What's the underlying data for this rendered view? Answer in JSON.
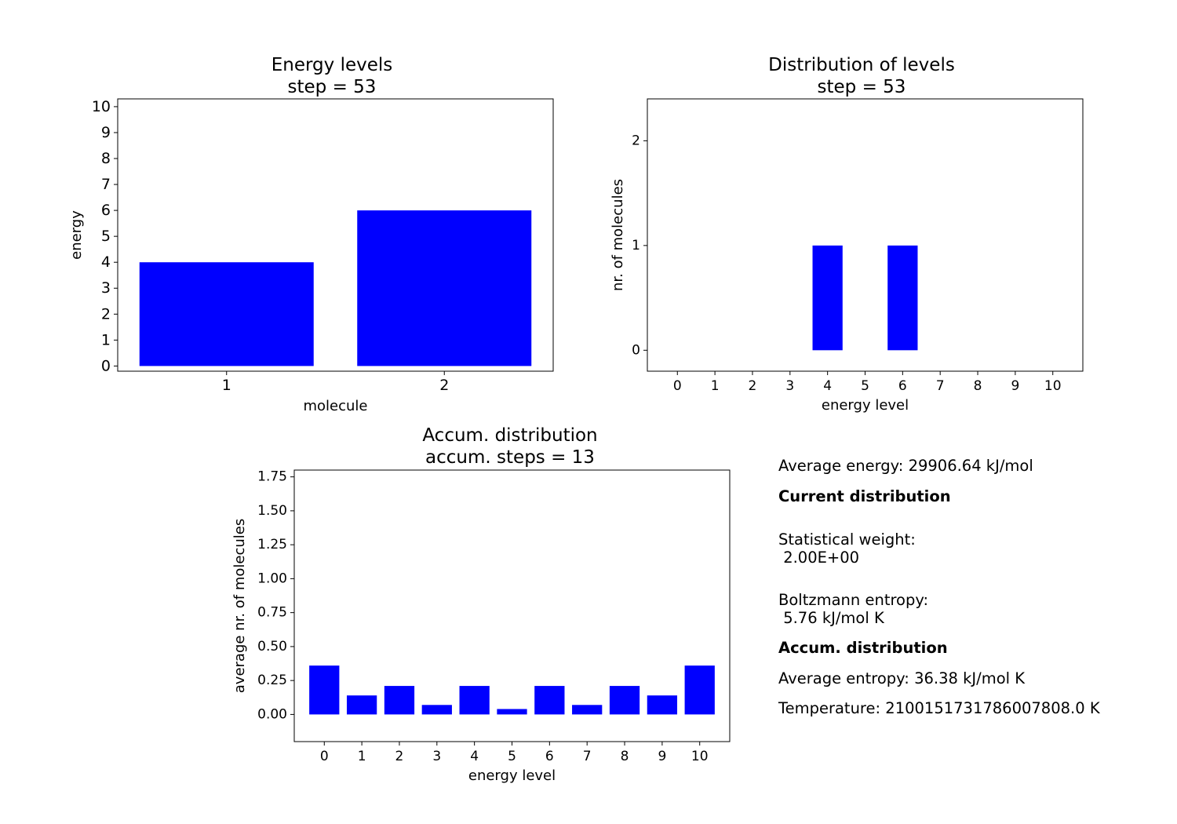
{
  "chart_data": [
    {
      "type": "bar",
      "title": "Energy levels\n step = 53",
      "xlabel": "molecule",
      "ylabel": "energy",
      "categories": [
        "1",
        "2"
      ],
      "values": [
        4,
        6
      ],
      "ylim": [
        -0.2,
        10.3
      ],
      "yticks": [
        "0",
        "1",
        "2",
        "3",
        "4",
        "5",
        "6",
        "7",
        "8",
        "9",
        "10"
      ],
      "bar_color": "#0000ff",
      "grid": false
    },
    {
      "type": "bar",
      "title": "Distribution of levels\n step = 53",
      "xlabel": "energy level",
      "ylabel": "nr. of molecules",
      "categories": [
        "0",
        "1",
        "2",
        "3",
        "4",
        "5",
        "6",
        "7",
        "8",
        "9",
        "10"
      ],
      "values": [
        0,
        0,
        0,
        0,
        1,
        0,
        1,
        0,
        0,
        0,
        0
      ],
      "ylim": [
        -0.2,
        2.4
      ],
      "yticks": [
        "0",
        "1",
        "2"
      ],
      "bar_color": "#0000ff",
      "grid": false
    },
    {
      "type": "bar",
      "title": "Accum. distribution\n accum. steps = 13",
      "xlabel": "energy level",
      "ylabel": "average nr. of molecules",
      "categories": [
        "0",
        "1",
        "2",
        "3",
        "4",
        "5",
        "6",
        "7",
        "8",
        "9",
        "10"
      ],
      "values": [
        0.36,
        0.14,
        0.21,
        0.07,
        0.21,
        0.04,
        0.21,
        0.07,
        0.21,
        0.14,
        0.36
      ],
      "ylim": [
        -0.2,
        1.8
      ],
      "yticks": [
        "0.00",
        "0.25",
        "0.50",
        "0.75",
        "1.00",
        "1.25",
        "1.50",
        "1.75"
      ],
      "bar_color": "#0000ff",
      "grid": false
    }
  ],
  "stats": {
    "average_energy": "Average energy: 29906.64 kJ/mol",
    "current_heading": "Current distribution",
    "weight_label": "Statistical weight:",
    "weight_value": " 2.00E+00",
    "entropy_label": "Boltzmann entropy:",
    "entropy_value": " 5.76 kJ/mol K",
    "accum_heading": "Accum. distribution",
    "average_entropy": "Average entropy: 36.38 kJ/mol K",
    "temperature": "Temperature: 2100151731786007808.0 K"
  }
}
